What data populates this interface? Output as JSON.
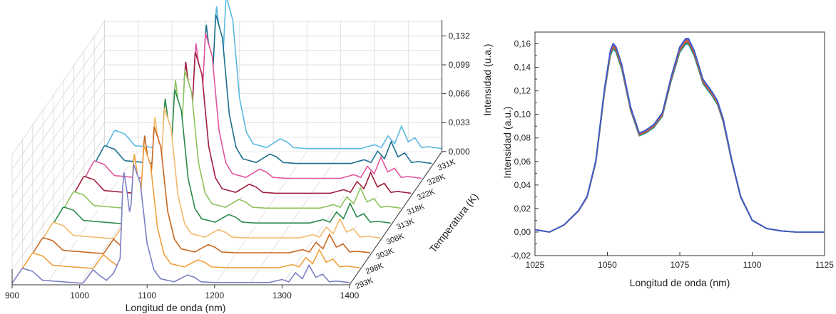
{
  "chart_data": [
    {
      "type": "line",
      "subtype": "3d-waterfall",
      "title": "",
      "xlabel": "Longitud de onda (nm)",
      "ylabel": "Temperatura (K)",
      "zlabel": "Intensidad (u.a.)",
      "x_ticks": [
        "900",
        "1000",
        "1100",
        "1200",
        "1300",
        "1400"
      ],
      "xlim": [
        900,
        1400
      ],
      "z_ticks": [
        "0,000",
        "0,033",
        "0,066",
        "0,099",
        "0,132"
      ],
      "zlim": [
        0,
        0.15
      ],
      "grid": true,
      "series": [
        {
          "name": "293K",
          "color": "#7b7fc4"
        },
        {
          "name": "298K",
          "color": "#f0a03c"
        },
        {
          "name": "303K",
          "color": "#c8661e"
        },
        {
          "name": "308K",
          "color": "#f2b86a"
        },
        {
          "name": "313K",
          "color": "#2a8a4a"
        },
        {
          "name": "318K",
          "color": "#8cc25a"
        },
        {
          "name": "322K",
          "color": "#a01c3c"
        },
        {
          "name": "328K",
          "color": "#e0559c"
        },
        {
          "name": "331K",
          "color": "#1a6e8e"
        },
        {
          "name": "",
          "color": "#5ab8e0"
        }
      ],
      "spectrum_x": [
        900,
        915,
        930,
        945,
        960,
        975,
        990,
        1005,
        1020,
        1030,
        1040,
        1050,
        1060,
        1065,
        1070,
        1075,
        1080,
        1090,
        1100,
        1110,
        1120,
        1140,
        1160,
        1170,
        1180,
        1200,
        1220,
        1240,
        1260,
        1280,
        1300,
        1310,
        1320,
        1330,
        1340,
        1350,
        1360,
        1370,
        1380,
        1390,
        1400
      ],
      "spectrum_y": [
        0.002,
        0.022,
        0.018,
        0.006,
        0.005,
        0.004,
        0.003,
        0.002,
        0.02,
        0.012,
        0.006,
        0.015,
        0.035,
        0.155,
        0.125,
        0.09,
        0.16,
        0.135,
        0.055,
        0.02,
        0.008,
        0.004,
        0.013,
        0.01,
        0.004,
        0.003,
        0.003,
        0.003,
        0.003,
        0.003,
        0.007,
        0.004,
        0.016,
        0.008,
        0.026,
        0.01,
        0.014,
        0.004,
        0.005,
        0.004,
        0.003
      ]
    },
    {
      "type": "line",
      "title": "",
      "xlabel": "Longitud de onda (nm)",
      "ylabel": "Intensidad (a.u.)",
      "xlim": [
        1025,
        1125
      ],
      "ylim": [
        -0.02,
        0.17
      ],
      "x_ticks": [
        "1025",
        "1050",
        "1075",
        "1100",
        "1125"
      ],
      "y_ticks": [
        "-0,02",
        "0,00",
        "0,02",
        "0,04",
        "0,06",
        "0,08",
        "0,10",
        "0,12",
        "0,14",
        "0,16"
      ],
      "grid": false,
      "series_colors": [
        "#1f9dc4",
        "#2ca35c",
        "#c0392b",
        "#e07a22",
        "#8e44ad",
        "#3a5fcd"
      ],
      "x": [
        1025,
        1030,
        1035,
        1040,
        1043,
        1046,
        1049,
        1051,
        1052,
        1053,
        1055,
        1058,
        1061,
        1063,
        1066,
        1069,
        1072,
        1075,
        1077,
        1078,
        1080,
        1083,
        1086,
        1088,
        1090,
        1093,
        1096,
        1100,
        1105,
        1110,
        1115,
        1120,
        1125
      ],
      "y": [
        0.002,
        0.0,
        0.006,
        0.018,
        0.03,
        0.06,
        0.12,
        0.152,
        0.158,
        0.155,
        0.14,
        0.105,
        0.083,
        0.085,
        0.09,
        0.1,
        0.13,
        0.155,
        0.162,
        0.162,
        0.152,
        0.128,
        0.118,
        0.11,
        0.095,
        0.06,
        0.03,
        0.01,
        0.003,
        0.001,
        0.0,
        0.0,
        0.0
      ]
    }
  ]
}
